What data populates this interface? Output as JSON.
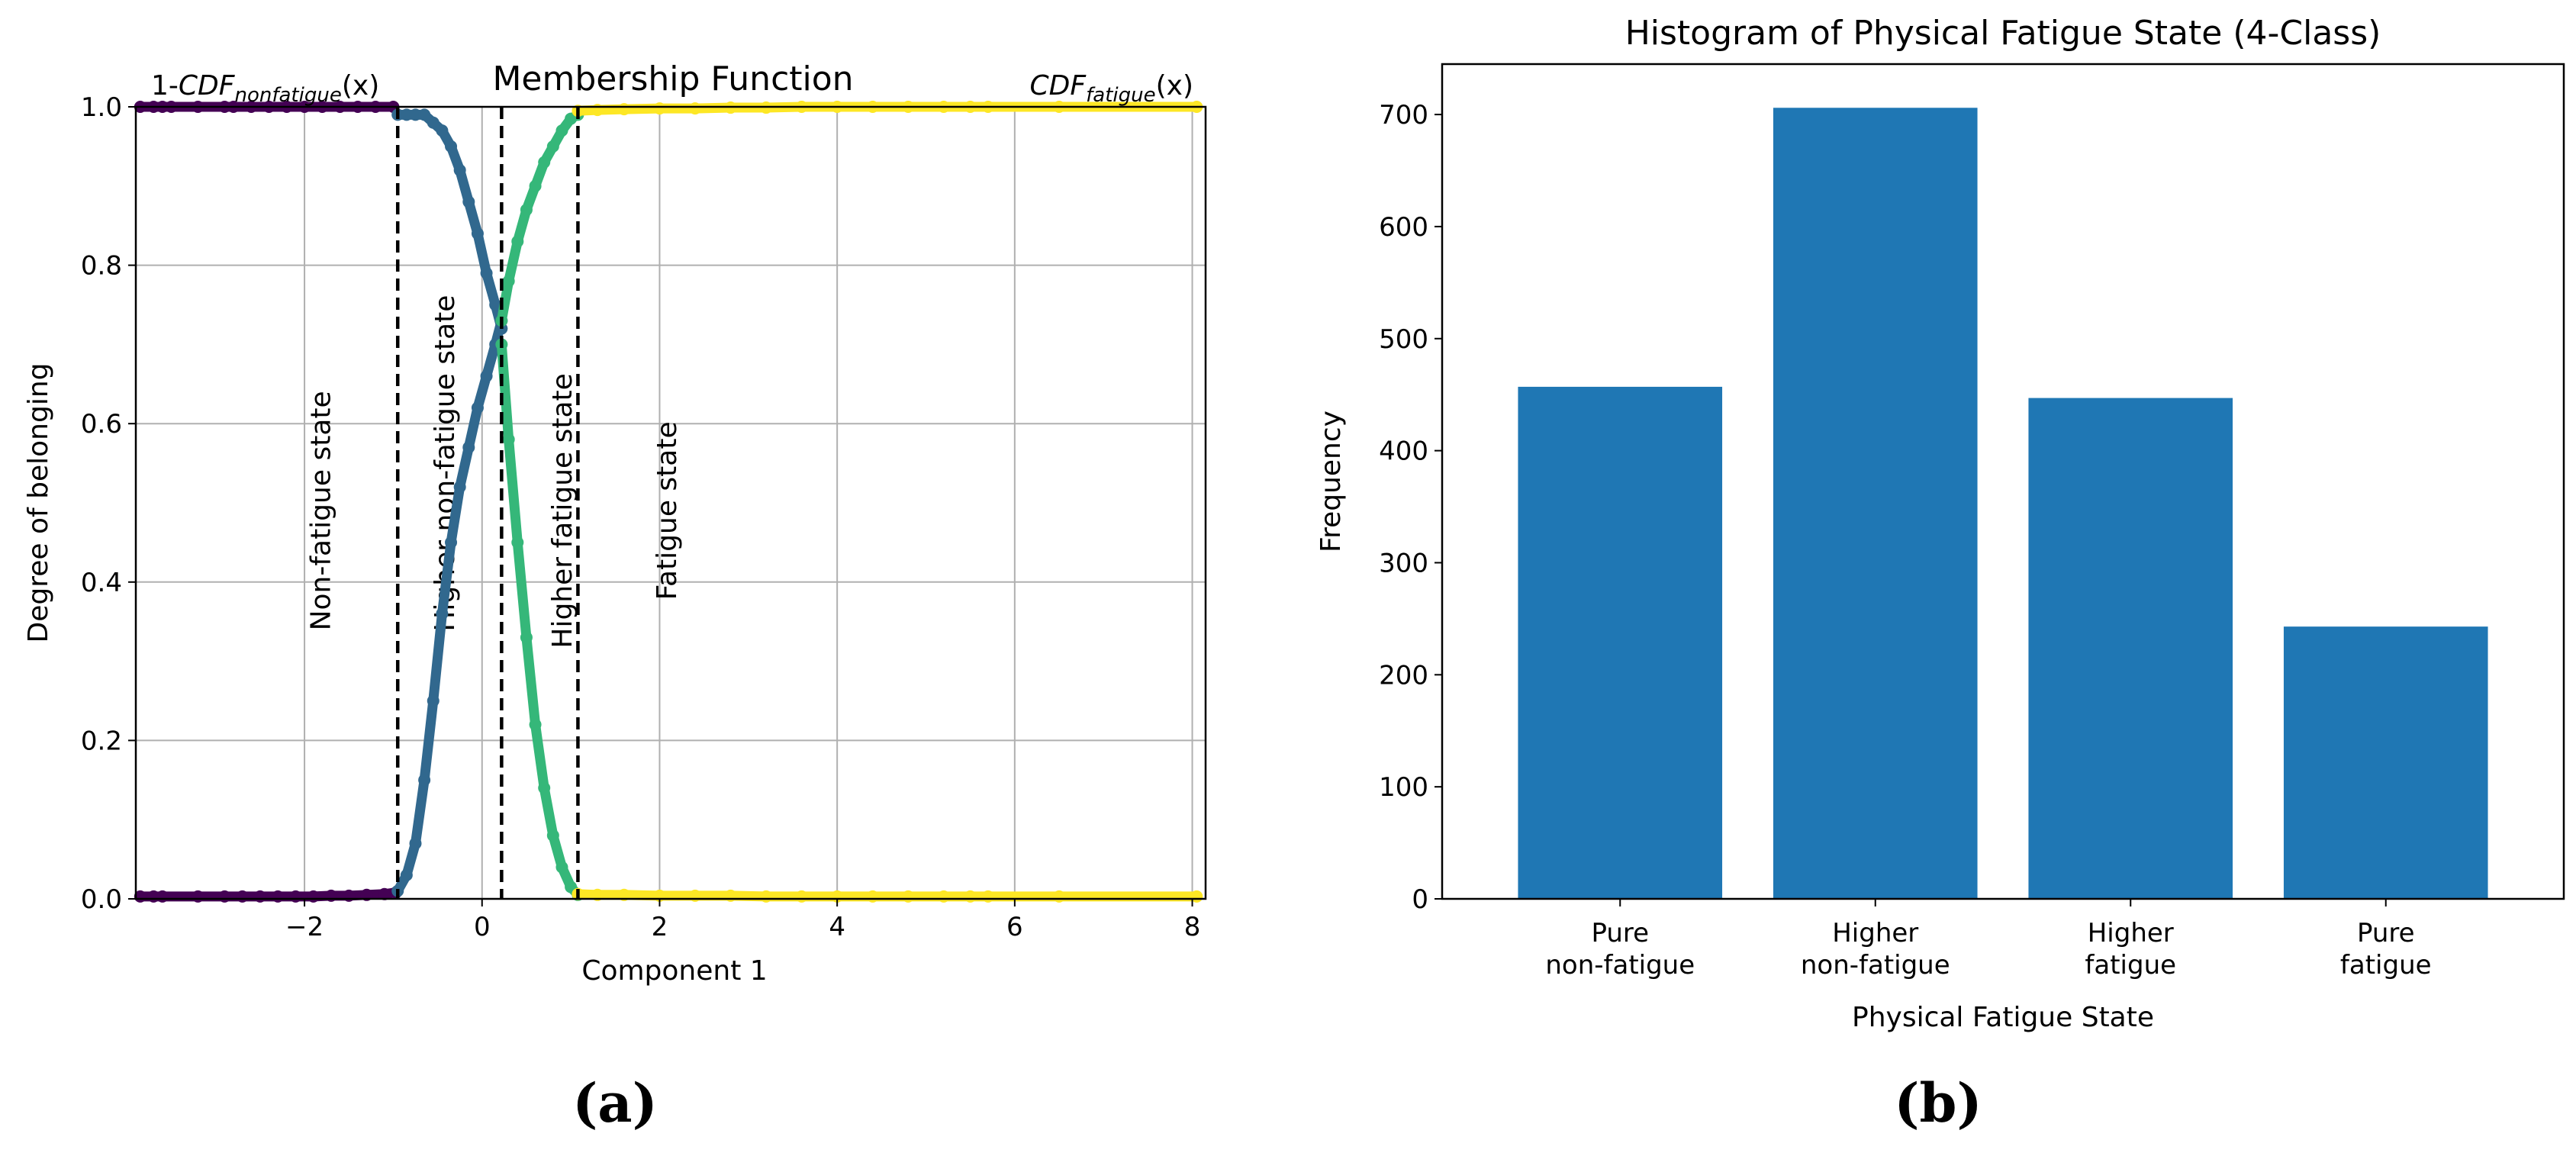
{
  "chart_data": [
    {
      "type": "scatter",
      "title": "Membership Function",
      "xlabel": "Component 1",
      "ylabel": "Degree of belonging",
      "xlim": [
        -3.9,
        8.15
      ],
      "ylim": [
        0,
        1
      ],
      "xticks": [
        -2,
        0,
        2,
        4,
        6,
        8
      ],
      "xtick_labels": [
        "−2",
        "0",
        "2",
        "4",
        "6",
        "8"
      ],
      "yticks": [
        0,
        0.2,
        0.4,
        0.6,
        0.8,
        1.0
      ],
      "ytick_labels": [
        "0.0",
        "0.2",
        "0.4",
        "0.6",
        "0.8",
        "1.0"
      ],
      "grid": true,
      "corner_labels": {
        "left": {
          "prefix": "1-",
          "main": "CDF",
          "sub": "nonfatigue",
          "suffix": "(x)"
        },
        "right": {
          "main": "CDF",
          "sub": "fatigue",
          "suffix": "(x)"
        }
      },
      "thresholds": [
        -0.95,
        0.22,
        1.08
      ],
      "region_labels": [
        {
          "text": "Non-fatigue state",
          "x": -1.8,
          "y": 0.49
        },
        {
          "text": "Higher non-fatigue state",
          "x": -0.4,
          "y": 0.55
        },
        {
          "text": "Higher fatigue state",
          "x": 0.92,
          "y": 0.49
        },
        {
          "text": "Fatigue state",
          "x": 2.1,
          "y": 0.49
        }
      ],
      "series": [
        {
          "color": "#440154",
          "x": [
            -3.85,
            -3.7,
            -3.6,
            -3.5,
            -3.2,
            -2.9,
            -2.8,
            -2.6,
            -2.4,
            -2.2,
            -2.0,
            -1.8,
            -1.6,
            -1.4,
            -1.2,
            -1.0
          ],
          "y": [
            1.0,
            1.0,
            1.0,
            1.0,
            1.0,
            1.0,
            1.0,
            1.0,
            1.0,
            1.0,
            1.0,
            1.0,
            1.0,
            1.0,
            1.0,
            1.0
          ]
        },
        {
          "color": "#440154",
          "x": [
            -3.85,
            -3.7,
            -3.6,
            -3.2,
            -2.9,
            -2.7,
            -2.5,
            -2.3,
            -2.1,
            -1.9,
            -1.7,
            -1.5,
            -1.3,
            -1.1,
            -0.97
          ],
          "y": [
            0.003,
            0.003,
            0.003,
            0.003,
            0.003,
            0.003,
            0.003,
            0.003,
            0.003,
            0.003,
            0.004,
            0.004,
            0.005,
            0.006,
            0.008
          ]
        },
        {
          "color": "#31688e",
          "x": [
            -0.95,
            -0.85,
            -0.75,
            -0.65,
            -0.55,
            -0.45,
            -0.35,
            -0.25,
            -0.15,
            -0.05,
            0.05,
            0.15,
            0.22
          ],
          "y": [
            0.01,
            0.03,
            0.07,
            0.15,
            0.25,
            0.36,
            0.45,
            0.52,
            0.57,
            0.62,
            0.66,
            0.7,
            0.73
          ]
        },
        {
          "color": "#31688e",
          "x": [
            -0.95,
            -0.85,
            -0.75,
            -0.65,
            -0.55,
            -0.45,
            -0.35,
            -0.25,
            -0.15,
            -0.05,
            0.05,
            0.15,
            0.22
          ],
          "y": [
            0.99,
            0.99,
            0.99,
            0.99,
            0.98,
            0.97,
            0.95,
            0.92,
            0.88,
            0.84,
            0.79,
            0.75,
            0.72
          ]
        },
        {
          "color": "#35b779",
          "x": [
            0.22,
            0.3,
            0.4,
            0.5,
            0.6,
            0.7,
            0.8,
            0.9,
            1.0,
            1.08
          ],
          "y": [
            0.73,
            0.78,
            0.83,
            0.87,
            0.9,
            0.93,
            0.95,
            0.97,
            0.985,
            0.99
          ]
        },
        {
          "color": "#35b779",
          "x": [
            0.22,
            0.3,
            0.4,
            0.5,
            0.6,
            0.7,
            0.8,
            0.9,
            1.0,
            1.08
          ],
          "y": [
            0.7,
            0.58,
            0.45,
            0.33,
            0.22,
            0.14,
            0.08,
            0.04,
            0.015,
            0.005
          ]
        },
        {
          "color": "#fde725",
          "x": [
            1.08,
            1.3,
            1.6,
            2.0,
            2.4,
            2.8,
            3.2,
            3.6,
            4.0,
            4.4,
            4.8,
            5.2,
            5.5,
            5.7,
            6.5,
            8.05
          ],
          "y": [
            0.995,
            0.996,
            0.997,
            0.998,
            0.998,
            0.999,
            0.999,
            1.0,
            1.0,
            1.0,
            1.0,
            1.0,
            1.0,
            1.0,
            1.0,
            1.0
          ]
        },
        {
          "color": "#fde725",
          "x": [
            1.08,
            1.3,
            1.6,
            2.0,
            2.4,
            2.8,
            3.2,
            3.6,
            4.0,
            4.4,
            4.8,
            5.2,
            5.5,
            5.7,
            6.5,
            8.05
          ],
          "y": [
            0.006,
            0.005,
            0.005,
            0.004,
            0.004,
            0.004,
            0.003,
            0.003,
            0.003,
            0.003,
            0.003,
            0.003,
            0.003,
            0.003,
            0.003,
            0.003
          ]
        }
      ]
    },
    {
      "type": "bar",
      "title": "Histogram of Physical Fatigue State (4-Class)",
      "xlabel": "Physical Fatigue State",
      "ylabel": "Frequency",
      "categories": [
        [
          "Pure",
          "non-fatigue"
        ],
        [
          "Higher",
          "non-fatigue"
        ],
        [
          "Higher",
          "fatigue"
        ],
        [
          "Pure",
          "fatigue"
        ]
      ],
      "values": [
        457,
        706,
        447,
        243
      ],
      "ylim": [
        0,
        745
      ],
      "yticks": [
        0,
        100,
        200,
        300,
        400,
        500,
        600,
        700
      ],
      "ytick_labels": [
        "0",
        "100",
        "200",
        "300",
        "400",
        "500",
        "600",
        "700"
      ],
      "color": "#1f77b4"
    }
  ],
  "panel_labels": [
    "(a)",
    "(b)"
  ]
}
